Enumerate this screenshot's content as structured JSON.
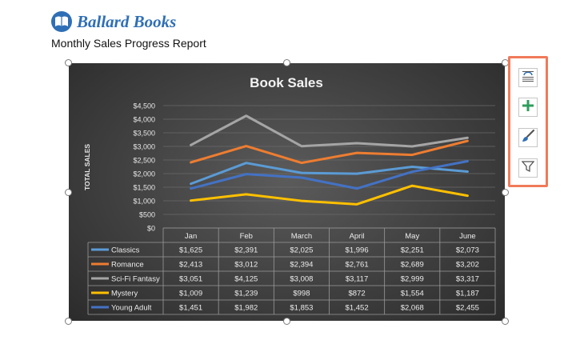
{
  "header": {
    "brand": "Ballard Books",
    "subtitle": "Monthly Sales Progress Report"
  },
  "toolbar": {
    "icons": [
      "chart-layout-icon",
      "plus-icon",
      "brush-icon",
      "filter-icon"
    ]
  },
  "colors": {
    "brand": "#2f6fb6",
    "highlight": "#f07a5a"
  },
  "chart_data": {
    "type": "line",
    "title": "Book Sales",
    "ylabel": "TOTAL SALES",
    "xlabel": "",
    "ylim": [
      0,
      4500
    ],
    "ytick_step": 500,
    "ytick_labels": [
      "$0",
      "$500",
      "$1,000",
      "$1,500",
      "$2,000",
      "$2,500",
      "$3,000",
      "$3,500",
      "$4,000",
      "$4,500"
    ],
    "grid": true,
    "categories": [
      "Jan",
      "Feb",
      "March",
      "April",
      "May",
      "June"
    ],
    "series": [
      {
        "name": "Classics",
        "color": "#5b9bd5",
        "values": [
          1625,
          2391,
          2025,
          1996,
          2251,
          2073
        ],
        "labels": [
          "$1,625",
          "$2,391",
          "$2,025",
          "$1,996",
          "$2,251",
          "$2,073"
        ]
      },
      {
        "name": "Romance",
        "color": "#ed7d31",
        "values": [
          2413,
          3012,
          2394,
          2761,
          2689,
          3202
        ],
        "labels": [
          "$2,413",
          "$3,012",
          "$2,394",
          "$2,761",
          "$2,689",
          "$3,202"
        ]
      },
      {
        "name": "Sci-Fi Fantasy",
        "color": "#a5a5a5",
        "values": [
          3051,
          4125,
          3008,
          3117,
          2999,
          3317
        ],
        "labels": [
          "$3,051",
          "$4,125",
          "$3,008",
          "$3,117",
          "$2,999",
          "$3,317"
        ]
      },
      {
        "name": "Mystery",
        "color": "#ffc000",
        "values": [
          1009,
          1239,
          998,
          872,
          1554,
          1187
        ],
        "labels": [
          "$1,009",
          "$1,239",
          "$998",
          "$872",
          "$1,554",
          "$1,187"
        ]
      },
      {
        "name": "Young Adult",
        "color": "#4472c4",
        "values": [
          1451,
          1982,
          1853,
          1452,
          2068,
          2455
        ],
        "labels": [
          "$1,451",
          "$1,982",
          "$1,853",
          "$1,452",
          "$2,068",
          "$2,455"
        ]
      }
    ]
  }
}
